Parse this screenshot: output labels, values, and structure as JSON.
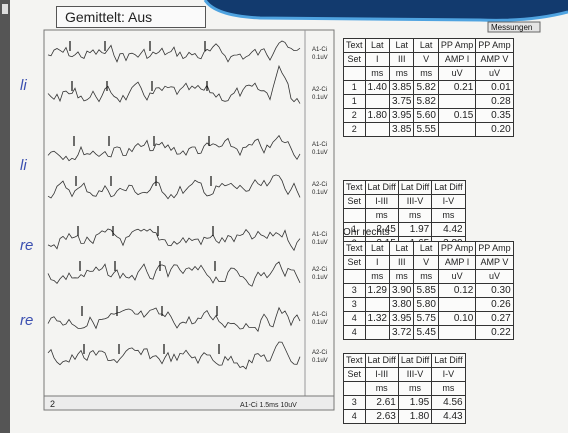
{
  "toolbar": {
    "mode": "Gemittelt: Aus",
    "tab": "Messungen"
  },
  "waveform_panel": {
    "trace_labels": [
      "A1-Ci",
      "A2-Ci",
      "A1-Ci",
      "A2-Ci",
      "A1-Ci",
      "A2-Ci",
      "A1-Ci",
      "A2-Ci"
    ],
    "trace_scales": [
      "0.1uV",
      "0.1uV",
      "0.1uV",
      "0.1uV",
      "0.1uV",
      "0.1uV",
      "0.1uV",
      "0.1uV"
    ],
    "notes": [
      "li",
      "li",
      "re",
      "re"
    ],
    "footer": {
      "index": "2",
      "label": "A1-Ci 1.5ms 10uV"
    }
  },
  "tables": [
    {
      "header": [
        [
          "Text",
          "Lat",
          "Lat",
          "Lat",
          "PP Amp",
          "PP Amp"
        ],
        [
          "Set",
          "I",
          "III",
          "V",
          "AMP I",
          "AMP V"
        ],
        [
          null,
          "ms",
          "ms",
          "ms",
          "uV",
          "uV"
        ]
      ],
      "rows": [
        [
          "1",
          "1.40",
          "3.85",
          "5.82",
          "0.21",
          "0.01"
        ],
        [
          "1",
          null,
          "3.75",
          "5.82",
          null,
          "0.28"
        ],
        [
          "2",
          "1.80",
          "3.95",
          "5.60",
          "0.15",
          "0.35"
        ],
        [
          "2",
          null,
          "3.85",
          "5.55",
          null,
          "0.20"
        ]
      ]
    },
    {
      "header": [
        [
          "Text",
          "Lat Diff",
          "Lat Diff",
          "Lat Diff"
        ],
        [
          "Set",
          "I-III",
          "III-V",
          "I-V"
        ],
        [
          null,
          "ms",
          "ms",
          "ms"
        ]
      ],
      "rows": [
        [
          "1",
          "2.45",
          "1.97",
          "4.42"
        ],
        [
          "2",
          "2.15",
          "1.65",
          "3.80"
        ]
      ]
    },
    {
      "title": "Ohr rechts",
      "header": [
        [
          "Text",
          "Lat",
          "Lat",
          "Lat",
          "PP Amp",
          "PP Amp"
        ],
        [
          "Set",
          "I",
          "III",
          "V",
          "AMP I",
          "AMP V"
        ],
        [
          null,
          "ms",
          "ms",
          "ms",
          "uV",
          "uV"
        ]
      ],
      "rows": [
        [
          "3",
          "1.29",
          "3.90",
          "5.85",
          "0.12",
          "0.30"
        ],
        [
          "3",
          null,
          "3.80",
          "5.80",
          null,
          "0.26"
        ],
        [
          "4",
          "1.32",
          "3.95",
          "5.75",
          "0.10",
          "0.27"
        ],
        [
          "4",
          null,
          "3.72",
          "5.45",
          null,
          "0.22"
        ]
      ]
    },
    {
      "header": [
        [
          "Text",
          "Lat Diff",
          "Lat Diff",
          "Lat Diff"
        ],
        [
          "Set",
          "I-III",
          "III-V",
          "I-V"
        ],
        [
          null,
          "ms",
          "ms",
          "ms"
        ]
      ],
      "rows": [
        [
          "3",
          "2.61",
          "1.95",
          "4.56"
        ],
        [
          "4",
          "2.63",
          "1.80",
          "4.43"
        ]
      ]
    }
  ]
}
